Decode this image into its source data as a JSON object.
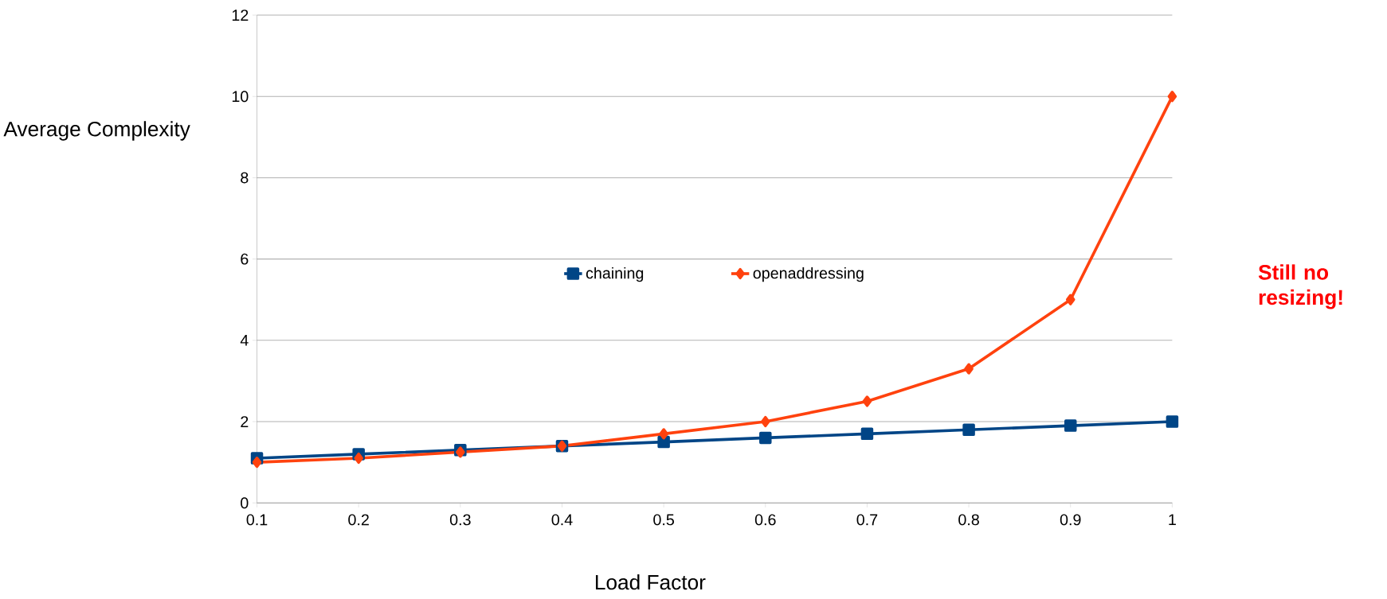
{
  "chart_data": {
    "type": "line",
    "xlabel": "Load Factor",
    "ylabel": "Average Complexity",
    "x": [
      0.1,
      0.2,
      0.3,
      0.4,
      0.5,
      0.6,
      0.7,
      0.8,
      0.9,
      1
    ],
    "series": [
      {
        "name": "chaining",
        "color": "#004586",
        "marker": "square",
        "values": [
          1.1,
          1.2,
          1.3,
          1.4,
          1.5,
          1.6,
          1.7,
          1.8,
          1.9,
          2.0
        ]
      },
      {
        "name": "openaddressing",
        "color": "#ff420e",
        "marker": "diamond",
        "values": [
          1.0,
          1.1,
          1.25,
          1.4,
          1.7,
          2.0,
          2.5,
          3.3,
          5.0,
          10.0
        ]
      }
    ],
    "xlim": [
      0.1,
      1
    ],
    "ylim": [
      0,
      12
    ],
    "xticks": [
      0.1,
      0.2,
      0.3,
      0.4,
      0.5,
      0.6,
      0.7,
      0.8,
      0.9,
      1
    ],
    "yticks": [
      0,
      2,
      4,
      6,
      8,
      10,
      12
    ],
    "grid": "y",
    "legend": "center",
    "line_style": "solid",
    "annotations": [
      "Still no resizing!"
    ]
  }
}
